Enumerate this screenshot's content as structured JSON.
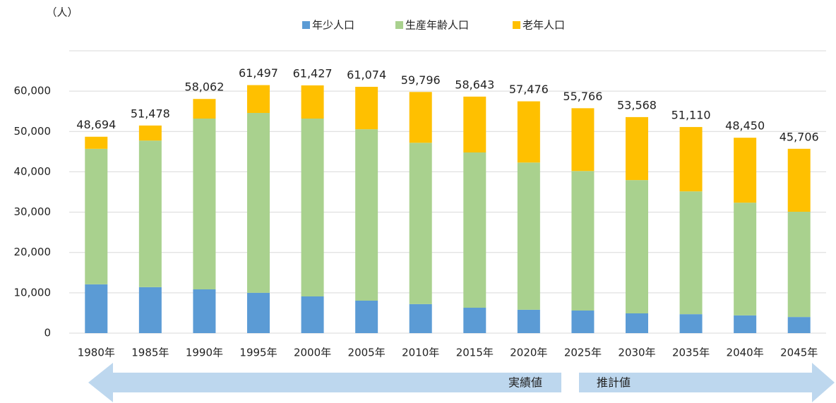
{
  "chart_data": {
    "type": "stacked_bar",
    "unit_label": "（人）",
    "categories": [
      "1980年",
      "1985年",
      "1990年",
      "1995年",
      "2000年",
      "2005年",
      "2010年",
      "2015年",
      "2020年",
      "2025年",
      "2030年",
      "2035年",
      "2040年",
      "2045年"
    ],
    "series": [
      {
        "name": "年少人口",
        "color": "#5b9bd5",
        "values": [
          12100,
          11400,
          10850,
          10000,
          9100,
          8050,
          7200,
          6300,
          5800,
          5600,
          4900,
          4700,
          4400,
          4000
        ]
      },
      {
        "name": "生産年齢人口",
        "color": "#a9d18e",
        "values": [
          33600,
          36350,
          42350,
          44600,
          44100,
          42500,
          40000,
          38500,
          36500,
          34600,
          33050,
          30450,
          27950,
          26100
        ]
      },
      {
        "name": "老年人口",
        "color": "#ffc000",
        "values": [
          2994,
          3728,
          4862,
          6897,
          8227,
          10524,
          12596,
          13843,
          15176,
          15566,
          15618,
          15960,
          16100,
          15606
        ]
      }
    ],
    "totals": [
      48694,
      51478,
      58062,
      61497,
      61427,
      61074,
      59796,
      58643,
      57476,
      55766,
      53568,
      51110,
      48450,
      45706
    ],
    "total_labels": [
      "48,694",
      "51,478",
      "58,062",
      "61,497",
      "61,427",
      "61,074",
      "59,796",
      "58,643",
      "57,476",
      "55,766",
      "53,568",
      "51,110",
      "48,450",
      "45,706"
    ],
    "ylim": [
      0,
      70000
    ],
    "yticks": [
      0,
      {
        "value": 10000,
        "label": "10,000"
      },
      {
        "value": 20000,
        "label": "20,000"
      },
      {
        "value": 30000,
        "label": "30,000"
      },
      {
        "value": 40000,
        "label": "40,000"
      },
      {
        "value": 50000,
        "label": "50,000"
      },
      {
        "value": 60000,
        "label": "60,000"
      }
    ],
    "grid": true,
    "annotations": [
      "実績値",
      "推計値"
    ]
  }
}
